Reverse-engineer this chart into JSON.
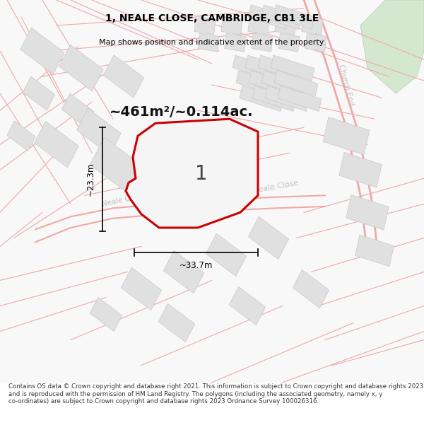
{
  "title": "1, NEALE CLOSE, CAMBRIDGE, CB1 3LE",
  "subtitle": "Map shows position and indicative extent of the property.",
  "area_label": "~461m²/~0.114ac.",
  "plot_number": "1",
  "width_label": "~33.7m",
  "height_label": "~23.3m",
  "footer_text": "Contains OS data © Crown copyright and database right 2021. This information is subject to Crown copyright and database rights 2023 and is reproduced with the permission of HM Land Registry. The polygons (including the associated geometry, namely x, y co-ordinates) are subject to Crown copyright and database rights 2023 Ordnance Survey 100026316.",
  "bg_color": "#f5f5f5",
  "road_color": "#f0a8a8",
  "road_edge": "#e88888",
  "building_fill": "#e0e0e0",
  "building_edge": "#c8c8c8",
  "plot_fill": "#f0f0f0",
  "plot_edge": "#cc0000",
  "green_fill": "#d4e8d0",
  "green_edge": "#b8ccb4",
  "street_label_color": "#c8c8c8",
  "church_end_color": "#c0c0c0",
  "dim_color": "#111111",
  "area_fontsize": 14,
  "plot_num_fontsize": 20
}
